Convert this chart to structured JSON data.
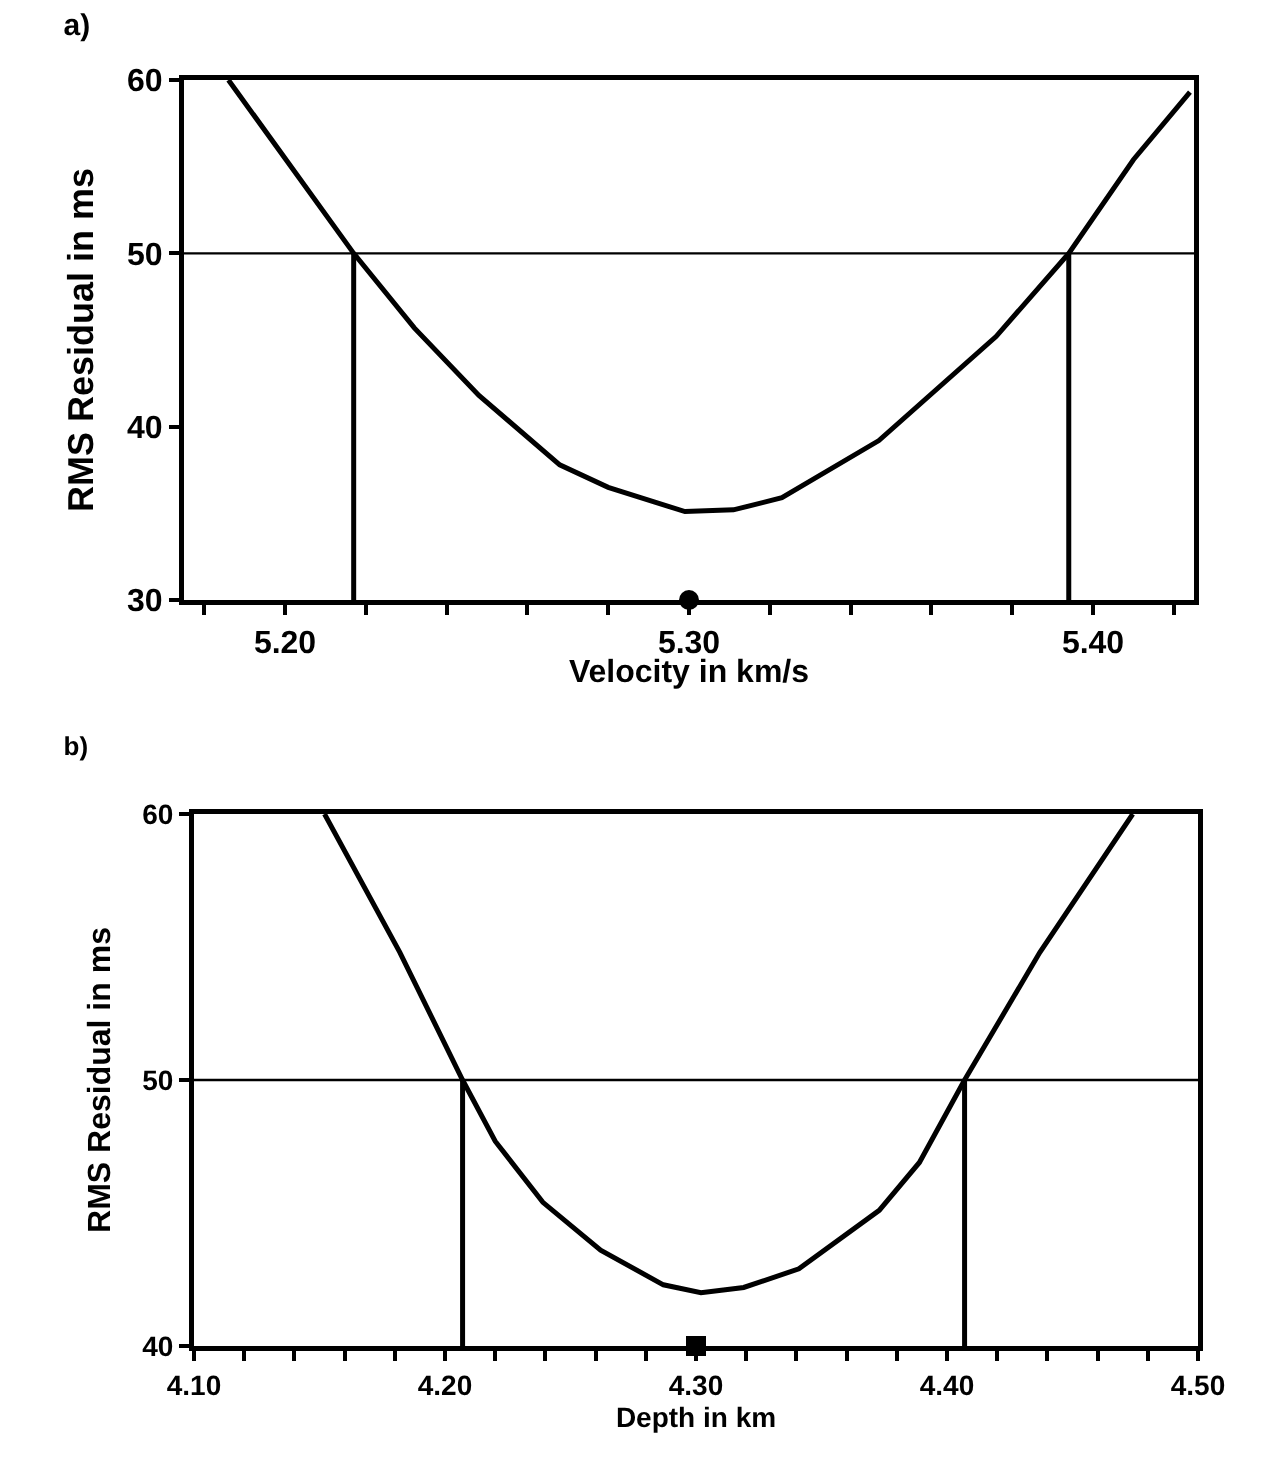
{
  "chart_data": [
    {
      "type": "line",
      "title": "a)",
      "xlabel": "Velocity in km/s",
      "ylabel": "RMS Residual in ms",
      "xlim": [
        5.175,
        5.425
      ],
      "ylim": [
        30,
        60
      ],
      "xticks": [
        {
          "value": 5.18,
          "label": null
        },
        {
          "value": 5.2,
          "label": "5.20"
        },
        {
          "value": 5.22,
          "label": null
        },
        {
          "value": 5.24,
          "label": null
        },
        {
          "value": 5.26,
          "label": null
        },
        {
          "value": 5.28,
          "label": null
        },
        {
          "value": 5.3,
          "label": "5.30"
        },
        {
          "value": 5.32,
          "label": null
        },
        {
          "value": 5.34,
          "label": null
        },
        {
          "value": 5.36,
          "label": null
        },
        {
          "value": 5.38,
          "label": null
        },
        {
          "value": 5.4,
          "label": "5.40"
        },
        {
          "value": 5.42,
          "label": null
        }
      ],
      "yticks": [
        30,
        40,
        50,
        60
      ],
      "grid": false,
      "marker": "none",
      "line_style": "solid",
      "ref_lines": [
        {
          "axis": "y",
          "value": 50,
          "color": "#000000"
        }
      ],
      "series": [
        {
          "color": "#000000",
          "x": [
            5.186,
            5.217,
            5.232,
            5.248,
            5.268,
            5.28,
            5.299,
            5.311,
            5.323,
            5.347,
            5.376,
            5.394,
            5.41,
            5.424
          ],
          "values": [
            60,
            50,
            45.7,
            41.8,
            37.8,
            36.5,
            35.1,
            35.2,
            35.9,
            39.2,
            45.2,
            50,
            55.4,
            59.3
          ]
        },
        {
          "color": "#000000",
          "x": [
            5.217,
            5.217
          ],
          "values": [
            30,
            50
          ]
        },
        {
          "color": "#000000",
          "x": [
            5.394,
            5.394
          ],
          "values": [
            30,
            50
          ]
        },
        {
          "type": "scatter",
          "marker": "circle",
          "color": "#000000",
          "x": [
            5.3
          ],
          "values": [
            30
          ]
        }
      ]
    },
    {
      "type": "line",
      "title": "b)",
      "xlabel": "Depth in km",
      "ylabel": "RMS Residual in ms",
      "xlim": [
        4.1,
        4.5
      ],
      "ylim": [
        40,
        60
      ],
      "xticks": [
        {
          "value": 4.1,
          "label": "4.10"
        },
        {
          "value": 4.12,
          "label": null
        },
        {
          "value": 4.14,
          "label": null
        },
        {
          "value": 4.16,
          "label": null
        },
        {
          "value": 4.18,
          "label": null
        },
        {
          "value": 4.2,
          "label": "4.20"
        },
        {
          "value": 4.22,
          "label": null
        },
        {
          "value": 4.24,
          "label": null
        },
        {
          "value": 4.26,
          "label": null
        },
        {
          "value": 4.28,
          "label": null
        },
        {
          "value": 4.3,
          "label": "4.30"
        },
        {
          "value": 4.32,
          "label": null
        },
        {
          "value": 4.34,
          "label": null
        },
        {
          "value": 4.36,
          "label": null
        },
        {
          "value": 4.38,
          "label": null
        },
        {
          "value": 4.4,
          "label": "4.40"
        },
        {
          "value": 4.42,
          "label": null
        },
        {
          "value": 4.44,
          "label": null
        },
        {
          "value": 4.46,
          "label": null
        },
        {
          "value": 4.48,
          "label": null
        },
        {
          "value": 4.5,
          "label": "4.50"
        }
      ],
      "yticks": [
        40,
        50,
        60
      ],
      "grid": false,
      "marker": "none",
      "line_style": "solid",
      "ref_lines": [
        {
          "axis": "y",
          "value": 50,
          "color": "#000000"
        }
      ],
      "series": [
        {
          "color": "#000000",
          "x": [
            4.152,
            4.182,
            4.207,
            4.22,
            4.239,
            4.262,
            4.287,
            4.302,
            4.319,
            4.341,
            4.373,
            4.389,
            4.407,
            4.437,
            4.474
          ],
          "values": [
            60,
            54.8,
            50,
            47.7,
            45.4,
            43.6,
            42.3,
            42.0,
            42.2,
            42.9,
            45.1,
            46.9,
            50,
            54.8,
            60
          ]
        },
        {
          "color": "#000000",
          "x": [
            4.207,
            4.207
          ],
          "values": [
            40,
            50
          ]
        },
        {
          "color": "#000000",
          "x": [
            4.407,
            4.407
          ],
          "values": [
            40,
            50
          ]
        },
        {
          "type": "scatter",
          "marker": "square",
          "color": "#000000",
          "x": [
            4.3
          ],
          "values": [
            40
          ]
        }
      ]
    }
  ]
}
